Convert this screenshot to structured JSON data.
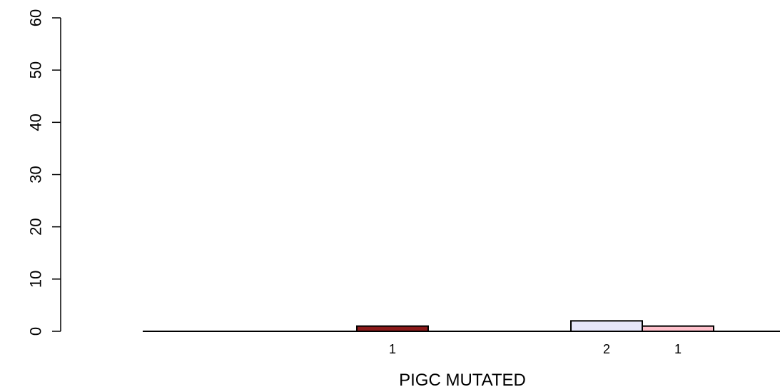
{
  "chart_data": {
    "type": "bar",
    "xlabel": "PIGC MUTATED",
    "ylabel": "",
    "ylim": [
      0,
      60
    ],
    "yticks": [
      0,
      10,
      20,
      30,
      40,
      50,
      60
    ],
    "grid": false,
    "legend": "none",
    "bars": [
      {
        "value": 0,
        "label": "",
        "color": "#FFFFFF"
      },
      {
        "value": 0,
        "label": "",
        "color": "#FFFFFF"
      },
      {
        "value": 0,
        "label": "",
        "color": "#FFFFFF"
      },
      {
        "value": 1,
        "label": "1",
        "color": "#8B1A1A"
      },
      {
        "value": 0,
        "label": "",
        "color": "#FFFFFF"
      },
      {
        "value": 0,
        "label": "",
        "color": "#FFFFFF"
      },
      {
        "value": 2,
        "label": "2",
        "color": "#E6E6FA"
      },
      {
        "value": 1,
        "label": "1",
        "color": "#FFC0CB"
      }
    ]
  }
}
